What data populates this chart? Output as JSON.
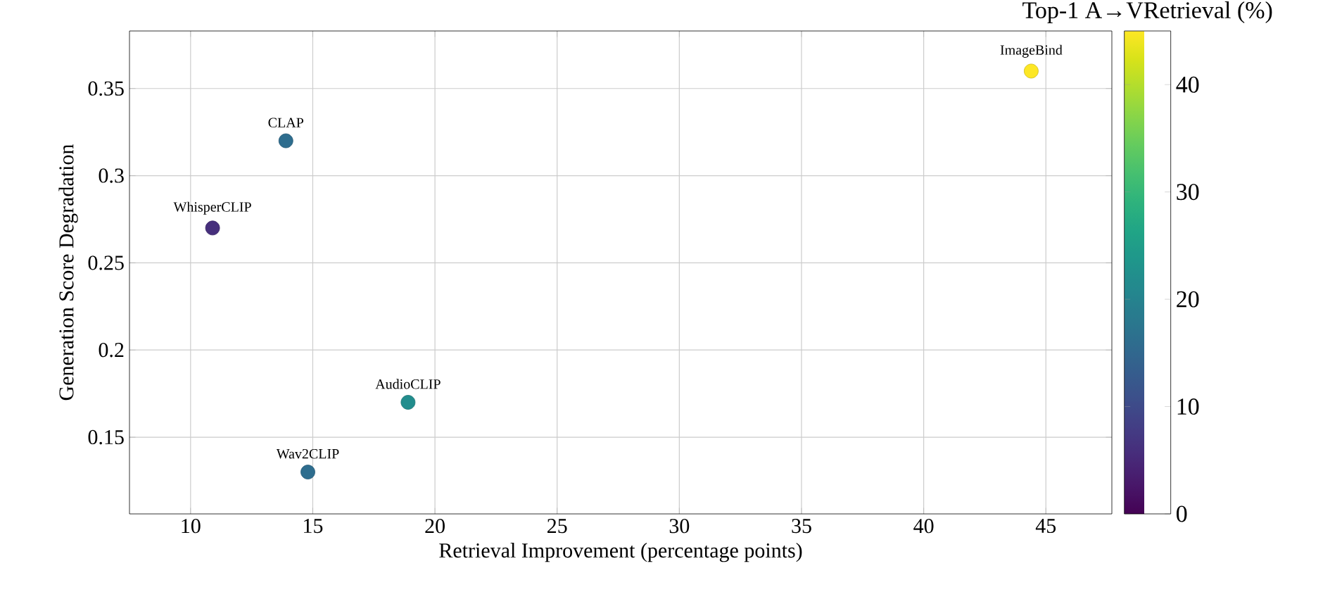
{
  "chart_data": {
    "type": "scatter",
    "xlabel": "Retrieval Improvement (percentage points)",
    "ylabel": "Generation Score Degradation",
    "clabel": "Top-1 A→VRetrieval (%)",
    "x": [
      10.9,
      13.9,
      14.8,
      18.9,
      44.4
    ],
    "values": [
      0.27,
      0.32,
      0.13,
      0.17,
      0.36
    ],
    "cvalues": [
      6,
      16,
      16,
      22,
      45
    ],
    "clim": [
      0,
      45
    ],
    "cticks": [
      0,
      10,
      20,
      30,
      40
    ],
    "xlim": [
      7.5,
      47.7
    ],
    "ylim": [
      0.106,
      0.383
    ],
    "xticks": [
      10,
      15,
      20,
      25,
      30,
      35,
      40,
      45
    ],
    "yticks": [
      0.15,
      0.2,
      0.25,
      0.3,
      0.35
    ],
    "grid": true,
    "marker": "circle",
    "annotations": [
      {
        "text": "WhisperCLIP",
        "x": 10.9,
        "y": 0.27
      },
      {
        "text": "CLAP",
        "x": 13.9,
        "y": 0.32
      },
      {
        "text": "Wav2CLIP",
        "x": 14.8,
        "y": 0.13
      },
      {
        "text": "AudioCLIP",
        "x": 18.9,
        "y": 0.17
      },
      {
        "text": "ImageBind",
        "x": 44.4,
        "y": 0.36
      }
    ]
  }
}
